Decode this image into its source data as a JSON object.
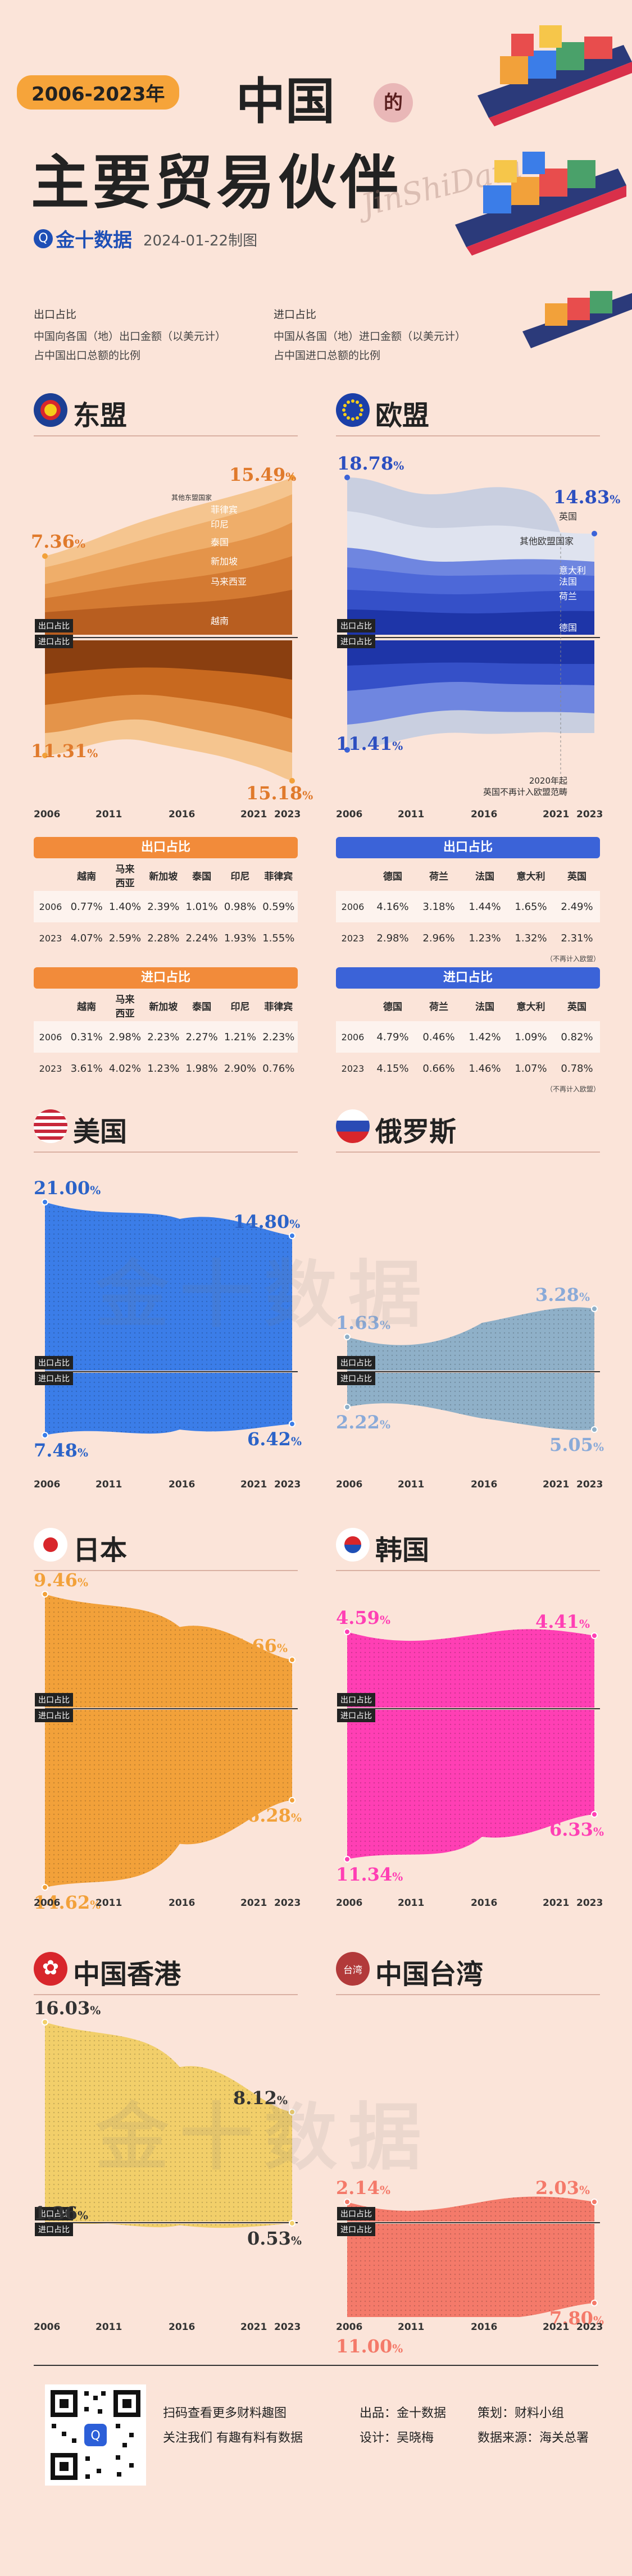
{
  "header": {
    "year_range": "2006-2023年",
    "title_line1": "中国",
    "title_de": "的",
    "title_line2": "主要贸易伙伴",
    "logo": "金十数据",
    "date": "2024-01-22制图",
    "signature": "JinShiData"
  },
  "legend": {
    "export_head": "出口占比",
    "export_line1": "中国向各国（地）出口金额（以美元计）",
    "export_line2": "占中国出口总额的比例",
    "import_head": "进口占比",
    "import_line1": "中国从各国（地）进口金额（以美元计）",
    "import_line2": "占中国进口总额的比例"
  },
  "labels": {
    "export": "出口占比",
    "import": "进口占比",
    "pct": "%"
  },
  "colors": {
    "asean": "#e8873a",
    "eu": "#2c4fc0",
    "us": "#3b7de8",
    "ru": "#8fb0c8",
    "jp": "#f2a13a",
    "kr": "#ff3fb4",
    "hk": "#f2cf6a",
    "tw": "#f47a6a"
  },
  "asean": {
    "title": "东盟",
    "exp_start": "7.36",
    "exp_end": "15.49",
    "imp_start": "11.31",
    "imp_end": "15.18",
    "layer_labels": [
      "其他东盟国家",
      "菲律宾",
      "印尼",
      "泰国",
      "新加坡",
      "马来西亚",
      "越南"
    ],
    "years": [
      "2006",
      "2011",
      "2016",
      "2021",
      "2023"
    ],
    "export_table": {
      "title": "出口占比",
      "cols": [
        "越南",
        "马来\n西亚",
        "新加坡",
        "泰国",
        "印尼",
        "菲律宾"
      ],
      "rows": [
        {
          "year": "2006",
          "vals": [
            "0.77%",
            "1.40%",
            "2.39%",
            "1.01%",
            "0.98%",
            "0.59%"
          ]
        },
        {
          "year": "2023",
          "vals": [
            "4.07%",
            "2.59%",
            "2.28%",
            "2.24%",
            "1.93%",
            "1.55%"
          ]
        }
      ]
    },
    "import_table": {
      "title": "进口占比",
      "cols": [
        "越南",
        "马来\n西亚",
        "新加坡",
        "泰国",
        "印尼",
        "菲律宾"
      ],
      "rows": [
        {
          "year": "2006",
          "vals": [
            "0.31%",
            "2.98%",
            "2.23%",
            "2.27%",
            "1.21%",
            "2.23%"
          ]
        },
        {
          "year": "2023",
          "vals": [
            "3.61%",
            "4.02%",
            "1.23%",
            "1.98%",
            "2.90%",
            "0.76%"
          ]
        }
      ]
    }
  },
  "eu": {
    "title": "欧盟",
    "exp_start": "18.78",
    "exp_end": "14.83",
    "imp_start": "11.41",
    "layer_labels": [
      "英国",
      "其他欧盟国家",
      "意大利",
      "法国",
      "荷兰",
      "德国"
    ],
    "note_line1": "2020年起",
    "note_line2": "英国不再计入欧盟范畴",
    "years": [
      "2006",
      "2011",
      "2016",
      "2021",
      "2023"
    ],
    "export_table": {
      "title": "出口占比",
      "cols": [
        "德国",
        "荷兰",
        "法国",
        "意大利",
        "英国"
      ],
      "rows": [
        {
          "year": "2006",
          "vals": [
            "4.16%",
            "3.18%",
            "1.44%",
            "1.65%",
            "2.49%"
          ]
        },
        {
          "year": "2023",
          "vals": [
            "2.98%",
            "2.96%",
            "1.23%",
            "1.32%",
            "2.31%"
          ]
        }
      ],
      "note": "（不再计入欧盟）"
    },
    "import_table": {
      "title": "进口占比",
      "cols": [
        "德国",
        "荷兰",
        "法国",
        "意大利",
        "英国"
      ],
      "rows": [
        {
          "year": "2006",
          "vals": [
            "4.79%",
            "0.46%",
            "1.42%",
            "1.09%",
            "0.82%"
          ]
        },
        {
          "year": "2023",
          "vals": [
            "4.15%",
            "0.66%",
            "1.46%",
            "1.07%",
            "0.78%"
          ]
        }
      ],
      "note": "（不再计入欧盟）"
    }
  },
  "us": {
    "title": "美国",
    "exp_start": "21.00",
    "exp_end": "14.80",
    "imp_start": "7.48",
    "imp_end": "6.42"
  },
  "ru": {
    "title": "俄罗斯",
    "exp_start": "1.63",
    "exp_end": "3.28",
    "imp_start": "2.22",
    "imp_end": "5.05"
  },
  "jp": {
    "title": "日本",
    "exp_start": "9.46",
    "exp_end": "4.66",
    "imp_start": "14.62",
    "imp_end": "6.28"
  },
  "kr": {
    "title": "韩国",
    "exp_start": "4.59",
    "exp_end": "4.41",
    "imp_start": "11.34",
    "imp_end": "6.33"
  },
  "hk": {
    "title": "中国香港",
    "exp_start": "16.03",
    "exp_end": "8.12",
    "imp_start": "1.36",
    "imp_end": "0.53"
  },
  "tw": {
    "title": "中国台湾",
    "flag_text": "台湾",
    "exp_start": "2.14",
    "exp_end": "2.03",
    "imp_start": "11.00",
    "imp_end": "7.80"
  },
  "years": [
    "2006",
    "2011",
    "2016",
    "2021",
    "2023"
  ],
  "watermark": "金十数据",
  "chart_data": [
    {
      "type": "area",
      "title": "东盟",
      "x": [
        2006,
        2023
      ],
      "series": [
        {
          "name": "出口占比",
          "values": [
            7.36,
            15.49
          ]
        },
        {
          "name": "进口占比",
          "values": [
            11.31,
            15.18
          ]
        }
      ]
    },
    {
      "type": "area",
      "title": "欧盟",
      "x": [
        2006,
        2023
      ],
      "series": [
        {
          "name": "出口占比",
          "values": [
            18.78,
            14.83
          ]
        },
        {
          "name": "进口占比",
          "values": [
            11.41,
            null
          ]
        }
      ]
    },
    {
      "type": "area",
      "title": "美国",
      "x": [
        2006,
        2023
      ],
      "series": [
        {
          "name": "出口占比",
          "values": [
            21.0,
            14.8
          ]
        },
        {
          "name": "进口占比",
          "values": [
            7.48,
            6.42
          ]
        }
      ]
    },
    {
      "type": "area",
      "title": "俄罗斯",
      "x": [
        2006,
        2023
      ],
      "series": [
        {
          "name": "出口占比",
          "values": [
            1.63,
            3.28
          ]
        },
        {
          "name": "进口占比",
          "values": [
            2.22,
            5.05
          ]
        }
      ]
    },
    {
      "type": "area",
      "title": "日本",
      "x": [
        2006,
        2023
      ],
      "series": [
        {
          "name": "出口占比",
          "values": [
            9.46,
            4.66
          ]
        },
        {
          "name": "进口占比",
          "values": [
            14.62,
            6.28
          ]
        }
      ]
    },
    {
      "type": "area",
      "title": "韩国",
      "x": [
        2006,
        2023
      ],
      "series": [
        {
          "name": "出口占比",
          "values": [
            4.59,
            4.41
          ]
        },
        {
          "name": "进口占比",
          "values": [
            11.34,
            6.33
          ]
        }
      ]
    },
    {
      "type": "area",
      "title": "中国香港",
      "x": [
        2006,
        2023
      ],
      "series": [
        {
          "name": "出口占比",
          "values": [
            16.03,
            8.12
          ]
        },
        {
          "name": "进口占比",
          "values": [
            1.36,
            0.53
          ]
        }
      ]
    },
    {
      "type": "area",
      "title": "中国台湾",
      "x": [
        2006,
        2023
      ],
      "series": [
        {
          "name": "出口占比",
          "values": [
            2.14,
            2.03
          ]
        },
        {
          "name": "进口占比",
          "values": [
            11.0,
            7.8
          ]
        }
      ]
    }
  ],
  "footer": {
    "scan": "扫码查看更多财料趣图",
    "follow": "关注我们 有趣有料有数据",
    "producer_label": "出品：",
    "producer": "金十数据",
    "planner_label": "策划：",
    "planner": "财料小组",
    "designer_label": "设计：",
    "designer": "吴晓梅",
    "source_label": "数据来源：",
    "source": "海关总署"
  }
}
